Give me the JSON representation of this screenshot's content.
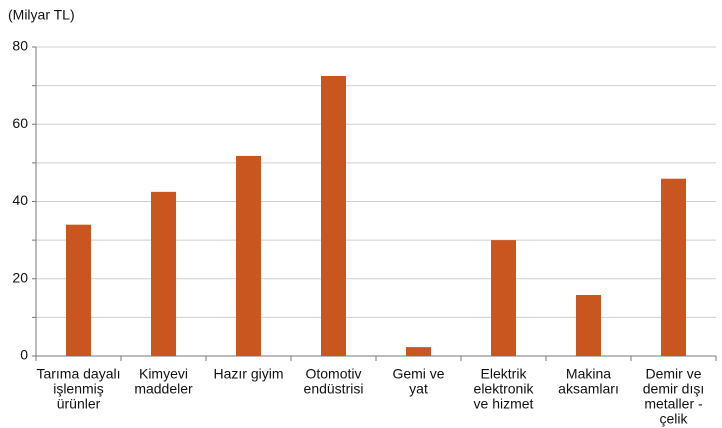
{
  "chart_data": {
    "type": "bar",
    "title": "(Milyar TL)",
    "categories": [
      [
        "Tarıma dayalı",
        "işlenmiş",
        "ürünler"
      ],
      [
        "Kimyevi",
        "maddeler"
      ],
      [
        "Hazır giyim"
      ],
      [
        "Otomotiv",
        "endüstrisi"
      ],
      [
        "Gemi ve",
        "yat"
      ],
      [
        "Elektrik",
        "elektronik",
        "ve hizmet"
      ],
      [
        "Makina",
        "aksamları"
      ],
      [
        "Demir ve",
        "demir dışı",
        "metaller -",
        "çelik"
      ]
    ],
    "values": [
      34,
      42.5,
      51.8,
      72.5,
      2.3,
      30,
      15.8,
      45.9
    ],
    "color": "#c9561f",
    "ylim": [
      0,
      80
    ],
    "yticks": [
      0,
      20,
      40,
      60,
      80
    ],
    "yminor": [
      10,
      30,
      50,
      70
    ],
    "grid": true
  }
}
